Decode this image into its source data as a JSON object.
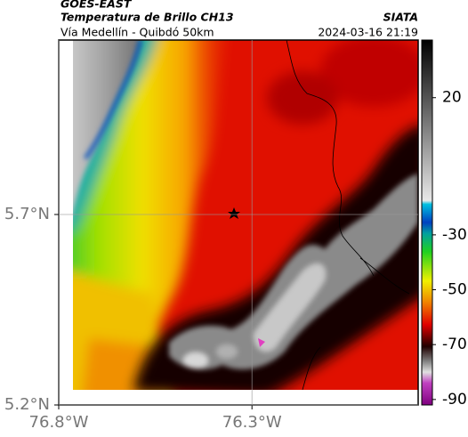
{
  "header": {
    "source": "GOES-EAST",
    "title": "Temperatura de Brillo CH13",
    "agency": "SIATA",
    "subtitle": "Vía Medellín - Quibdó 50km",
    "datetime": "2024-03-16 21:19"
  },
  "map": {
    "xlim": [
      -76.8,
      -75.87
    ],
    "ylim": [
      5.2,
      6.158
    ],
    "xticks": [
      {
        "value": -76.8,
        "label": "76.8°W"
      },
      {
        "value": -76.3,
        "label": "76.3°W"
      }
    ],
    "yticks": [
      {
        "value": 5.7,
        "label": "5.7°N"
      },
      {
        "value": 5.2,
        "label": "5.2°N"
      }
    ],
    "grid": true
  },
  "colorbar": {
    "clim": [
      -92,
      41
    ],
    "ticks": [
      20,
      -30,
      -50,
      -70,
      -90
    ]
  }
}
